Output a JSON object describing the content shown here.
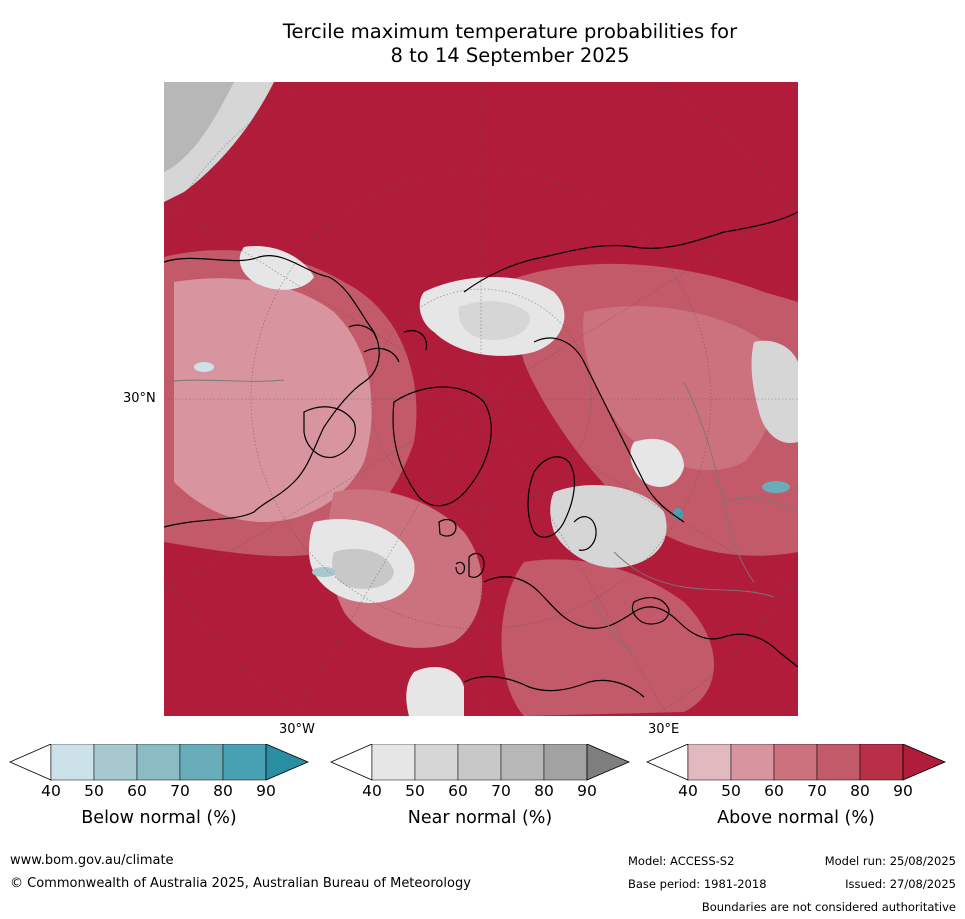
{
  "title": {
    "line1": "Tercile maximum temperature probabilities for",
    "line2": "8 to 14 September 2025"
  },
  "map": {
    "projection": "north polar stereographic",
    "lat_label": "30°N",
    "lon_labels": {
      "west": "30°W",
      "east": "30°E"
    },
    "dominant_category": "Above normal",
    "colors": {
      "above": [
        "#e2b9bf",
        "#d8959f",
        "#cc717e",
        "#c35a69",
        "#ba2f48",
        "#b21c3b"
      ],
      "near": [
        "#e6e6e6",
        "#d6d6d6",
        "#c8c8c8",
        "#b7b7b7",
        "#a2a2a2",
        "#7e7e7e"
      ],
      "below": [
        "#cde2e8",
        "#a7c8cf",
        "#8bbcc4",
        "#6aadba",
        "#48a1b2",
        "#2a8ea3"
      ]
    }
  },
  "colorbars": [
    {
      "id": "below",
      "label": "Below normal (%)",
      "ticks": [
        "40",
        "50",
        "60",
        "70",
        "80",
        "90"
      ],
      "colors": [
        "#cde2e8",
        "#a7c8cf",
        "#8bbcc4",
        "#6aadba",
        "#48a1b2",
        "#2a8ea3"
      ]
    },
    {
      "id": "near",
      "label": "Near normal (%)",
      "ticks": [
        "40",
        "50",
        "60",
        "70",
        "80",
        "90"
      ],
      "colors": [
        "#e6e6e6",
        "#d6d6d6",
        "#c8c8c8",
        "#b7b7b7",
        "#a2a2a2",
        "#7e7e7e"
      ]
    },
    {
      "id": "above",
      "label": "Above normal (%)",
      "ticks": [
        "40",
        "50",
        "60",
        "70",
        "80",
        "90"
      ],
      "colors": [
        "#e2b9bf",
        "#d8959f",
        "#cc717e",
        "#c35a69",
        "#ba2f48",
        "#b21c3b"
      ]
    }
  ],
  "footer": {
    "website": "www.bom.gov.au/climate",
    "copyright": "© Commonwealth of Australia 2025, Australian Bureau of Meteorology",
    "model": "Model: ACCESS-S2",
    "model_run": "Model run: 25/08/2025",
    "base_period": "Base period: 1981-2018",
    "issued": "Issued: 27/08/2025",
    "disclaimer": "Boundaries are not considered authoritative"
  }
}
